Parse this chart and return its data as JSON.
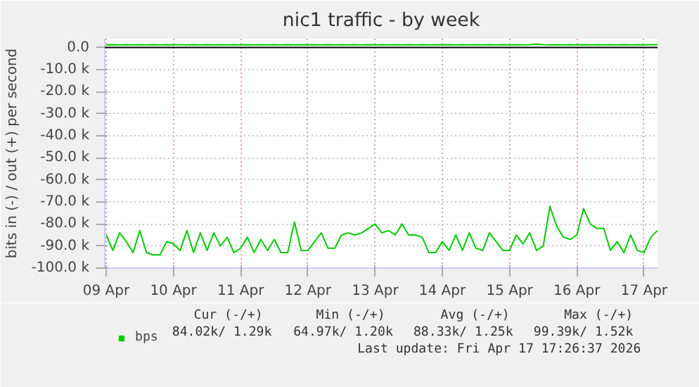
{
  "chart_data": {
    "type": "line",
    "title": "nic1 traffic - by week",
    "ylabel": "bits in (-) / out (+) per second",
    "x": [
      "2026-04-09T00:00",
      "2026-04-09T02:24",
      "2026-04-09T04:48",
      "2026-04-09T07:12",
      "2026-04-09T09:36",
      "2026-04-09T12:00",
      "2026-04-09T14:24",
      "2026-04-09T16:48",
      "2026-04-09T19:12",
      "2026-04-09T21:36",
      "2026-04-10T00:00",
      "2026-04-10T02:24",
      "2026-04-10T04:48",
      "2026-04-10T07:12",
      "2026-04-10T09:36",
      "2026-04-10T12:00",
      "2026-04-10T14:24",
      "2026-04-10T16:48",
      "2026-04-10T19:12",
      "2026-04-10T21:36",
      "2026-04-11T00:00",
      "2026-04-11T02:24",
      "2026-04-11T04:48",
      "2026-04-11T07:12",
      "2026-04-11T09:36",
      "2026-04-11T12:00",
      "2026-04-11T14:24",
      "2026-04-11T16:48",
      "2026-04-11T19:12",
      "2026-04-11T21:36",
      "2026-04-12T00:00",
      "2026-04-12T02:24",
      "2026-04-12T04:48",
      "2026-04-12T07:12",
      "2026-04-12T09:36",
      "2026-04-12T12:00",
      "2026-04-12T14:24",
      "2026-04-12T16:48",
      "2026-04-12T19:12",
      "2026-04-12T21:36",
      "2026-04-13T00:00",
      "2026-04-13T02:24",
      "2026-04-13T04:48",
      "2026-04-13T07:12",
      "2026-04-13T09:36",
      "2026-04-13T12:00",
      "2026-04-13T14:24",
      "2026-04-13T16:48",
      "2026-04-13T19:12",
      "2026-04-13T21:36",
      "2026-04-14T00:00",
      "2026-04-14T02:24",
      "2026-04-14T04:48",
      "2026-04-14T07:12",
      "2026-04-14T09:36",
      "2026-04-14T12:00",
      "2026-04-14T14:24",
      "2026-04-14T16:48",
      "2026-04-14T19:12",
      "2026-04-14T21:36",
      "2026-04-15T00:00",
      "2026-04-15T02:24",
      "2026-04-15T04:48",
      "2026-04-15T07:12",
      "2026-04-15T09:36",
      "2026-04-15T12:00",
      "2026-04-15T14:24",
      "2026-04-15T16:48",
      "2026-04-15T19:12",
      "2026-04-15T21:36",
      "2026-04-16T00:00",
      "2026-04-16T02:24",
      "2026-04-16T04:48",
      "2026-04-16T07:12",
      "2026-04-16T09:36",
      "2026-04-16T12:00",
      "2026-04-16T14:24",
      "2026-04-16T16:48",
      "2026-04-16T19:12",
      "2026-04-16T21:36",
      "2026-04-17T00:00",
      "2026-04-17T02:24",
      "2026-04-17T04:48"
    ],
    "series": [
      {
        "name": "bps",
        "color": "#00cc00",
        "values": [
          -85,
          -92,
          -84,
          -88,
          -93,
          -83,
          -93,
          -94,
          -94,
          -88,
          -89,
          -92,
          -83,
          -93,
          -84,
          -92,
          -84,
          -90,
          -86,
          -93,
          -91,
          -86,
          -93,
          -87,
          -92,
          -87,
          -93,
          -93,
          -79,
          -92,
          -92,
          -88,
          -84,
          -91,
          -91,
          -85,
          -84,
          -85,
          -84,
          -82,
          -80,
          -84,
          -83,
          -85,
          -80,
          -85,
          -85,
          -86,
          -93,
          -93,
          -88,
          -92,
          -85,
          -92,
          -84,
          -91,
          -92,
          -84,
          -88,
          -92,
          -92,
          -85,
          -89,
          -84,
          -92,
          -90,
          -72,
          -81,
          -86,
          -87,
          -85,
          -73,
          -80,
          -82,
          -82,
          -92,
          -88,
          -93,
          -85,
          -92,
          -93,
          -86,
          -83
        ]
      },
      {
        "color": "#00cc00",
        "values": [
          1.2,
          1.3,
          1.2,
          1.3,
          1.2,
          1.3,
          1.2,
          1.3,
          1.2,
          1.3,
          1.2,
          1.3,
          1.2,
          1.3,
          1.2,
          1.3,
          1.2,
          1.3,
          1.2,
          1.3,
          1.2,
          1.3,
          1.2,
          1.3,
          1.2,
          1.3,
          1.2,
          1.3,
          1.2,
          1.3,
          1.2,
          1.3,
          1.2,
          1.3,
          1.2,
          1.3,
          1.2,
          1.3,
          1.2,
          1.3,
          1.2,
          1.3,
          1.2,
          1.3,
          1.2,
          1.3,
          1.2,
          1.3,
          1.2,
          1.3,
          1.2,
          1.3,
          1.2,
          1.3,
          1.2,
          1.3,
          1.2,
          1.3,
          1.2,
          1.3,
          1.2,
          1.3,
          1.2,
          1.3,
          1.5,
          1.3,
          1.2,
          1.3,
          1.2,
          1.3,
          1.2,
          1.3,
          1.2,
          1.3,
          1.2,
          1.3,
          1.2,
          1.3,
          1.2,
          1.3,
          1.2,
          1.3,
          1.3
        ]
      }
    ],
    "xlim": [
      "2026-04-08T23:30",
      "2026-04-17T04:48"
    ],
    "xticks": [
      {
        "value": "2026-04-09",
        "label": "09 Apr"
      },
      {
        "value": "2026-04-10",
        "label": "10 Apr"
      },
      {
        "value": "2026-04-11",
        "label": "11 Apr"
      },
      {
        "value": "2026-04-12",
        "label": "12 Apr"
      },
      {
        "value": "2026-04-13",
        "label": "13 Apr"
      },
      {
        "value": "2026-04-14",
        "label": "14 Apr"
      },
      {
        "value": "2026-04-15",
        "label": "15 Apr"
      },
      {
        "value": "2026-04-16",
        "label": "16 Apr"
      },
      {
        "value": "2026-04-17",
        "label": "17 Apr"
      }
    ],
    "ylim": [
      -100,
      4
    ],
    "yticks": [
      {
        "value": 0,
        "label": "0.0"
      },
      {
        "value": -10,
        "label": "-10.0 k"
      },
      {
        "value": -20,
        "label": "-20.0 k"
      },
      {
        "value": -30,
        "label": "-30.0 k"
      },
      {
        "value": -40,
        "label": "-40.0 k"
      },
      {
        "value": -50,
        "label": "-50.0 k"
      },
      {
        "value": -60,
        "label": "-60.0 k"
      },
      {
        "value": -70,
        "label": "-70.0 k"
      },
      {
        "value": -80,
        "label": "-80.0 k"
      },
      {
        "value": -90,
        "label": "-90.0 k"
      },
      {
        "value": -100,
        "label": "-100.0 k"
      }
    ],
    "ref_lines": [
      {
        "axis": "y",
        "value": 0,
        "color": "#000000"
      }
    ],
    "grid": true,
    "legend": "bottom left",
    "annotations": [
      "Cur (-/+)",
      "Min (-/+)",
      "Avg (-/+)",
      "Max (-/+)",
      "84.02k/  1.29k",
      "64.97k/  1.20k",
      "88.33k/  1.25k",
      "99.39k/  1.52k",
      "Last update: Fri Apr 17 17:26:37 2026"
    ]
  }
}
